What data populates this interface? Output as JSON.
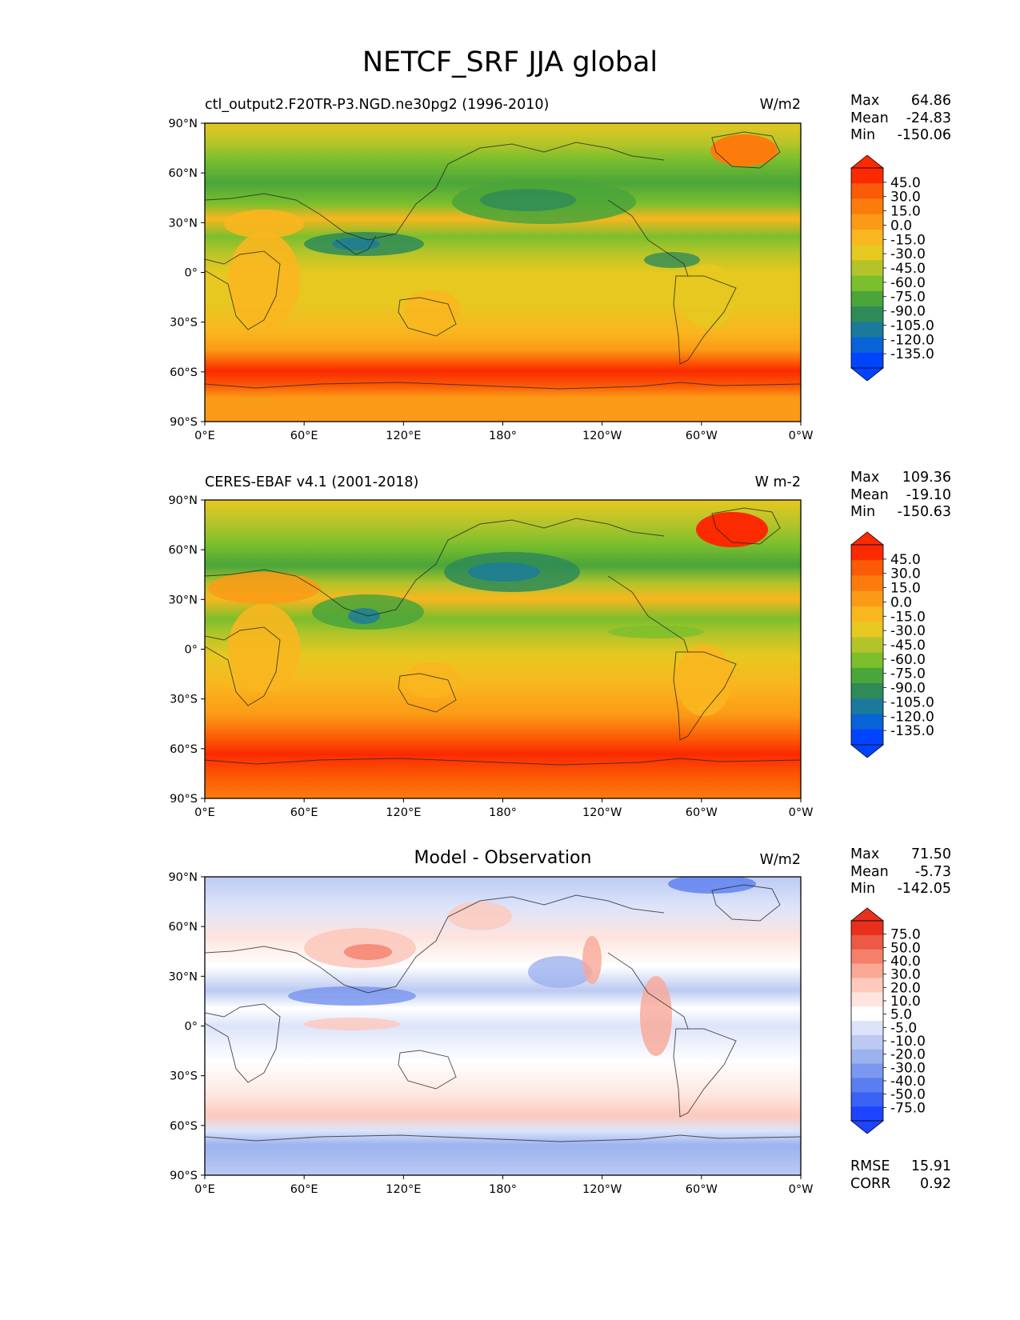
{
  "title": "NETCF_SRF JJA global",
  "lat_ticks": [
    "90°N",
    "60°N",
    "30°N",
    "0°",
    "30°S",
    "60°S",
    "90°S"
  ],
  "lon_ticks": [
    "0°E",
    "60°E",
    "120°E",
    "180°",
    "120°W",
    "60°W",
    "0°W"
  ],
  "colors": {
    "main": [
      "#0044ff",
      "#0863d6",
      "#1b7a9c",
      "#2e8b57",
      "#4aa53a",
      "#7bbf2d",
      "#b3c42a",
      "#e6c820",
      "#f9b61f",
      "#fb9a16",
      "#fb7c0d",
      "#fb5a06",
      "#fb2a00"
    ],
    "diff": [
      "#1f44ff",
      "#3a62f5",
      "#5a7ef0",
      "#7b98ee",
      "#9cb2ef",
      "#bccaf3",
      "#dde4fa",
      "#ffffff",
      "#fde4de",
      "#fcc9bc",
      "#f9a896",
      "#f4806b",
      "#ec5a45",
      "#e8301c"
    ]
  },
  "panels": [
    {
      "id": "model",
      "title": "ctl_output2.F20TR-P3.NGD.ne30pg2 (1996-2010)",
      "units": "W/m2",
      "stats": [
        {
          "label": "Max",
          "value": "64.86"
        },
        {
          "label": "Mean",
          "value": "-24.83"
        },
        {
          "label": "Min",
          "value": "-150.06"
        }
      ],
      "colorbar_labels": [
        "45.0",
        "30.0",
        "15.0",
        "0.0",
        "-15.0",
        "-30.0",
        "-45.0",
        "-60.0",
        "-75.0",
        "-90.0",
        "-105.0",
        "-120.0",
        "-135.0"
      ]
    },
    {
      "id": "obs",
      "title": "CERES-EBAF v4.1 (2001-2018)",
      "units": "W m-2",
      "stats": [
        {
          "label": "Max",
          "value": "109.36"
        },
        {
          "label": "Mean",
          "value": "-19.10"
        },
        {
          "label": "Min",
          "value": "-150.63"
        }
      ],
      "colorbar_labels": [
        "45.0",
        "30.0",
        "15.0",
        "0.0",
        "-15.0",
        "-30.0",
        "-45.0",
        "-60.0",
        "-75.0",
        "-90.0",
        "-105.0",
        "-120.0",
        "-135.0"
      ]
    },
    {
      "id": "diff",
      "title": "Model - Observation",
      "units": "W/m2",
      "stats": [
        {
          "label": "Max",
          "value": "71.50"
        },
        {
          "label": "Mean",
          "value": "-5.73"
        },
        {
          "label": "Min",
          "value": "-142.05"
        }
      ],
      "colorbar_labels": [
        "75.0",
        "50.0",
        "40.0",
        "30.0",
        "20.0",
        "10.0",
        "5.0",
        "-5.0",
        "-10.0",
        "-20.0",
        "-30.0",
        "-40.0",
        "-50.0",
        "-75.0"
      ],
      "metrics": [
        {
          "label": "RMSE",
          "value": "15.91"
        },
        {
          "label": "CORR",
          "value": "0.92"
        }
      ]
    }
  ]
}
